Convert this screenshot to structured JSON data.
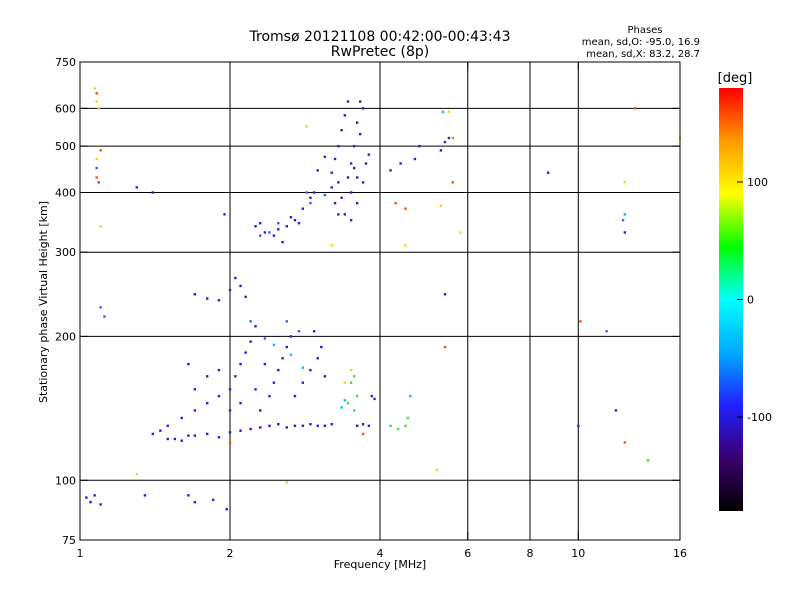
{
  "chart_data": {
    "type": "scatter",
    "title": "Tromsø 20121108 00:42:00-00:43:43",
    "subtitle": "RwPretec (8p)",
    "phase_box": {
      "heading": "Phases",
      "line1": "mean, sd,O: -95.0, 16.9",
      "line2": "mean, sd,X:  83.2, 28.7"
    },
    "xlabel": "Frequency [MHz]",
    "ylabel": "Stationary phase Virtual Height [km]",
    "x_scale": "log",
    "y_scale": "log",
    "xlim": [
      1,
      16
    ],
    "ylim": [
      75,
      750
    ],
    "x_ticks": [
      1,
      2,
      4,
      6,
      8,
      10,
      16
    ],
    "y_ticks": [
      75,
      100,
      200,
      300,
      400,
      500,
      600,
      750
    ],
    "x_grid": [
      2,
      4,
      6,
      8,
      10
    ],
    "y_grid": [
      100,
      200,
      300,
      400,
      500,
      600
    ],
    "grid": true,
    "colorbar": {
      "label": "[deg]",
      "range": [
        -180,
        180
      ],
      "ticks": [
        100,
        0,
        -100
      ],
      "colors": [
        "#000000",
        "#3a0070",
        "#2020ff",
        "#00aaff",
        "#00ffff",
        "#00ff00",
        "#ffff00",
        "#ff9900",
        "#ff0000"
      ]
    },
    "series": [
      {
        "color": "#2020e0",
        "points": [
          [
            1.03,
            92
          ],
          [
            1.05,
            90
          ],
          [
            1.07,
            93
          ],
          [
            1.1,
            89
          ],
          [
            1.35,
            93
          ],
          [
            1.65,
            93
          ],
          [
            1.7,
            90
          ],
          [
            1.85,
            91
          ],
          [
            1.97,
            87
          ],
          [
            1.4,
            125
          ],
          [
            1.45,
            127
          ],
          [
            1.5,
            122
          ],
          [
            1.55,
            122
          ],
          [
            1.6,
            121
          ],
          [
            1.65,
            124
          ],
          [
            1.7,
            124
          ],
          [
            1.8,
            125
          ],
          [
            1.9,
            123
          ],
          [
            2.0,
            126
          ],
          [
            2.1,
            127
          ],
          [
            2.2,
            128
          ],
          [
            2.3,
            129
          ],
          [
            2.4,
            130
          ],
          [
            2.5,
            131
          ],
          [
            2.6,
            129
          ],
          [
            2.7,
            130
          ],
          [
            2.8,
            130
          ],
          [
            2.9,
            131
          ],
          [
            3.0,
            130
          ],
          [
            3.1,
            130
          ],
          [
            3.2,
            131
          ],
          [
            1.5,
            130
          ],
          [
            1.6,
            135
          ],
          [
            1.7,
            140
          ],
          [
            1.8,
            145
          ],
          [
            1.9,
            150
          ],
          [
            2.0,
            155
          ],
          [
            2.05,
            165
          ],
          [
            2.1,
            175
          ],
          [
            2.15,
            185
          ],
          [
            2.2,
            195
          ],
          [
            2.25,
            210
          ],
          [
            1.7,
            155
          ],
          [
            1.8,
            165
          ],
          [
            1.9,
            170
          ],
          [
            2.0,
            140
          ],
          [
            2.1,
            145
          ],
          [
            2.3,
            140
          ],
          [
            2.4,
            150
          ],
          [
            2.45,
            160
          ],
          [
            2.5,
            170
          ],
          [
            2.55,
            180
          ],
          [
            2.6,
            190
          ],
          [
            2.65,
            200
          ],
          [
            2.7,
            150
          ],
          [
            2.8,
            160
          ],
          [
            2.9,
            170
          ],
          [
            3.0,
            180
          ],
          [
            3.05,
            190
          ],
          [
            2.95,
            205
          ],
          [
            3.1,
            165
          ],
          [
            2.35,
            175
          ],
          [
            2.25,
            155
          ],
          [
            1.7,
            245
          ],
          [
            1.8,
            240
          ],
          [
            1.9,
            238
          ],
          [
            2.0,
            250
          ],
          [
            2.05,
            265
          ],
          [
            2.1,
            255
          ],
          [
            2.15,
            242
          ],
          [
            1.65,
            175
          ],
          [
            2.35,
            330
          ],
          [
            2.5,
            335
          ],
          [
            2.6,
            340
          ],
          [
            2.7,
            350
          ],
          [
            2.8,
            370
          ],
          [
            2.9,
            390
          ],
          [
            2.95,
            400
          ],
          [
            2.45,
            325
          ],
          [
            2.3,
            345
          ],
          [
            2.55,
            315
          ],
          [
            2.65,
            355
          ],
          [
            2.75,
            345
          ],
          [
            1.95,
            360
          ],
          [
            2.25,
            340
          ]
        ]
      },
      {
        "color": "#5010c0",
        "points": [
          [
            3.2,
            440
          ],
          [
            3.25,
            470
          ],
          [
            3.3,
            500
          ],
          [
            3.35,
            540
          ],
          [
            3.4,
            580
          ],
          [
            3.45,
            620
          ],
          [
            3.3,
            420
          ],
          [
            3.2,
            410
          ],
          [
            3.5,
            460
          ],
          [
            3.55,
            500
          ],
          [
            3.6,
            560
          ],
          [
            3.65,
            620
          ],
          [
            3.5,
            400
          ],
          [
            3.6,
            380
          ],
          [
            3.7,
            420
          ],
          [
            3.75,
            460
          ],
          [
            3.8,
            480
          ],
          [
            3.25,
            380
          ],
          [
            3.35,
            390
          ],
          [
            3.45,
            430
          ],
          [
            3.55,
            450
          ],
          [
            3.65,
            530
          ],
          [
            3.4,
            360
          ],
          [
            3.7,
            600
          ],
          [
            3.3,
            360
          ],
          [
            3.5,
            350
          ],
          [
            3.6,
            430
          ],
          [
            3.0,
            445
          ],
          [
            3.1,
            475
          ],
          [
            3.6,
            130
          ],
          [
            3.7,
            131
          ],
          [
            3.8,
            130
          ],
          [
            3.85,
            150
          ],
          [
            3.9,
            148
          ],
          [
            4.4,
            460
          ],
          [
            4.7,
            470
          ],
          [
            4.8,
            500
          ],
          [
            5.3,
            490
          ],
          [
            5.4,
            510
          ],
          [
            5.5,
            520
          ],
          [
            4.2,
            445
          ],
          [
            5.4,
            245
          ],
          [
            8.7,
            440
          ],
          [
            12.4,
            330
          ],
          [
            11.9,
            140
          ],
          [
            10.0,
            130
          ],
          [
            1.3,
            410
          ],
          [
            1.4,
            400
          ]
        ]
      },
      {
        "color": "#3060ff",
        "points": [
          [
            1.08,
            450
          ],
          [
            1.09,
            420
          ],
          [
            1.1,
            230
          ],
          [
            1.12,
            220
          ],
          [
            2.3,
            325
          ],
          [
            2.4,
            330
          ],
          [
            2.5,
            345
          ],
          [
            2.85,
            400
          ],
          [
            2.9,
            380
          ],
          [
            3.1,
            395
          ],
          [
            2.2,
            215
          ],
          [
            2.35,
            198
          ],
          [
            2.6,
            215
          ],
          [
            2.75,
            205
          ],
          [
            12.3,
            350
          ],
          [
            11.4,
            205
          ]
        ]
      },
      {
        "color": "#00c0ff",
        "points": [
          [
            2.65,
            183
          ],
          [
            2.45,
            192
          ],
          [
            2.8,
            172
          ],
          [
            3.35,
            142
          ],
          [
            3.4,
            147
          ],
          [
            5.35,
            590
          ],
          [
            12.4,
            360
          ],
          [
            4.6,
            150
          ]
        ]
      },
      {
        "color": "#40e040",
        "points": [
          [
            3.5,
            160
          ],
          [
            3.55,
            165
          ],
          [
            3.6,
            150
          ],
          [
            3.45,
            145
          ],
          [
            3.55,
            140
          ],
          [
            4.2,
            130
          ],
          [
            4.35,
            128
          ],
          [
            4.55,
            135
          ],
          [
            4.5,
            130
          ],
          [
            5.6,
            520
          ],
          [
            13.8,
            110
          ]
        ]
      },
      {
        "color": "#ffd000",
        "points": [
          [
            1.07,
            660
          ],
          [
            1.08,
            620
          ],
          [
            1.09,
            600
          ],
          [
            1.08,
            470
          ],
          [
            1.1,
            340
          ],
          [
            1.3,
            103
          ],
          [
            2.6,
            99
          ],
          [
            2.85,
            550
          ],
          [
            3.2,
            310
          ],
          [
            3.5,
            170
          ],
          [
            3.4,
            160
          ],
          [
            4.5,
            310
          ],
          [
            5.2,
            105
          ],
          [
            5.8,
            330
          ],
          [
            5.5,
            590
          ],
          [
            12.4,
            420
          ],
          [
            5.3,
            375
          ],
          [
            16.0,
            520
          ]
        ]
      },
      {
        "color": "#ff5000",
        "points": [
          [
            1.08,
            645
          ],
          [
            1.1,
            490
          ],
          [
            1.08,
            430
          ],
          [
            2.0,
            120
          ],
          [
            3.7,
            125
          ],
          [
            4.3,
            380
          ],
          [
            4.5,
            370
          ],
          [
            5.4,
            190
          ],
          [
            5.6,
            420
          ],
          [
            10.1,
            215
          ],
          [
            12.4,
            120
          ],
          [
            13.0,
            600
          ]
        ]
      }
    ]
  }
}
